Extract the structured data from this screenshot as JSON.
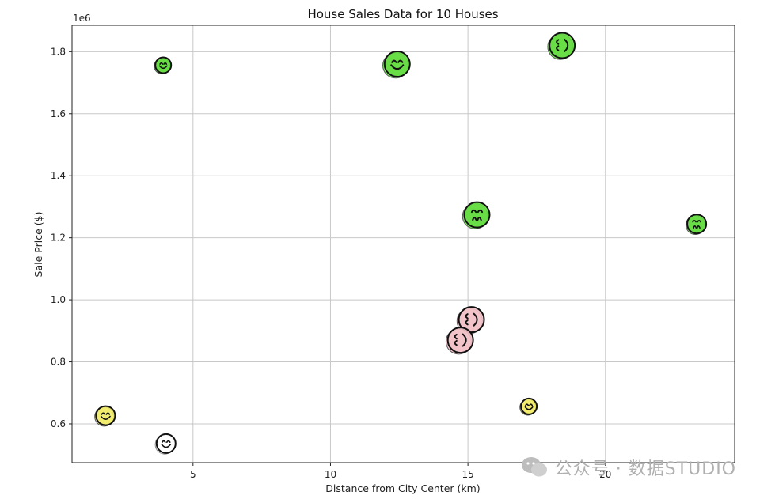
{
  "chart_data": {
    "type": "scatter",
    "title": "House Sales Data for 10 Houses",
    "xlabel": "Distance from City Center (km)",
    "ylabel": "Sale Price ($)",
    "y_offset_label": "1e6",
    "xlim": [
      0.6,
      24.7
    ],
    "ylim": [
      0.475,
      1.885
    ],
    "x_ticks": [
      5,
      10,
      15,
      20
    ],
    "x_tick_labels": [
      "5",
      "10",
      "15",
      "20"
    ],
    "y_ticks": [
      0.6,
      0.8,
      1.0,
      1.2,
      1.4,
      1.6,
      1.8
    ],
    "y_tick_labels": [
      "0.6",
      "0.8",
      "1.0",
      "1.2",
      "1.4",
      "1.6",
      "1.8"
    ],
    "grid": true,
    "points": [
      {
        "x": 1.8,
        "y": 0.625,
        "color": "#f2ec6b",
        "face": "smile",
        "size": 2
      },
      {
        "x": 4.0,
        "y": 0.535,
        "color": "#ffffff",
        "face": "smile",
        "size": 2
      },
      {
        "x": 3.9,
        "y": 1.755,
        "color": "#66dd44",
        "face": "smile",
        "size": 1
      },
      {
        "x": 12.4,
        "y": 1.758,
        "color": "#66dd44",
        "face": "smile",
        "size": 3
      },
      {
        "x": 18.4,
        "y": 1.818,
        "color": "#66dd44",
        "face": "side",
        "size": 3
      },
      {
        "x": 15.3,
        "y": 1.272,
        "color": "#66dd44",
        "face": "frown",
        "size": 3
      },
      {
        "x": 23.3,
        "y": 1.243,
        "color": "#66dd44",
        "face": "frown",
        "size": 2
      },
      {
        "x": 15.1,
        "y": 0.934,
        "color": "#f2c2c8",
        "face": "side",
        "size": 3
      },
      {
        "x": 14.7,
        "y": 0.868,
        "color": "#f2c2c8",
        "face": "side",
        "size": 3
      },
      {
        "x": 17.2,
        "y": 0.655,
        "color": "#f2ec6b",
        "face": "smile",
        "size": 1
      }
    ]
  },
  "watermark": {
    "text": "公众号 · 数据STUDIO"
  }
}
